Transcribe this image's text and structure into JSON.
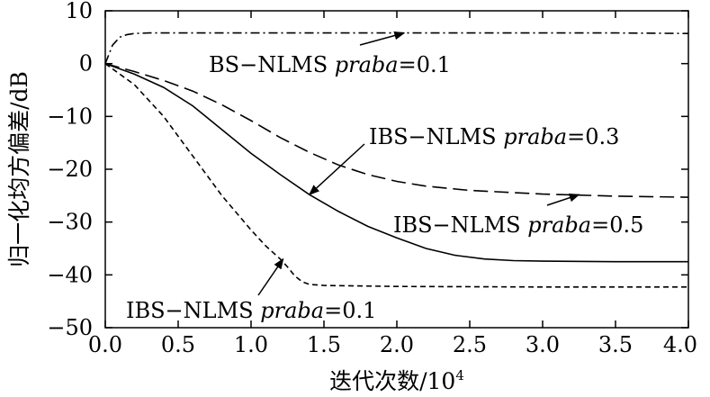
{
  "chart_data": {
    "type": "line",
    "xlabel": "迭代次数/10",
    "xlabel_sup": "4",
    "ylabel": "归一化均方偏差/dB",
    "xlim": [
      0,
      4.0
    ],
    "ylim": [
      -50,
      10
    ],
    "xticks": [
      "0.0",
      "0.5",
      "1.0",
      "1.5",
      "2.0",
      "2.5",
      "3.0",
      "3.5",
      "4.0"
    ],
    "yticks": [
      "10",
      "0",
      "−10",
      "−20",
      "−30",
      "−40",
      "−50"
    ],
    "grid": false,
    "legend": "none",
    "series": [
      {
        "id": "bs01",
        "style": "dash-dot",
        "x": [
          0,
          0.05,
          0.1,
          0.15,
          0.2,
          0.3,
          0.5,
          1.0,
          1.5,
          2.0,
          2.5,
          3.0,
          3.5,
          4.0
        ],
        "y": [
          0,
          3.5,
          5.0,
          5.5,
          5.7,
          5.8,
          5.8,
          5.8,
          5.8,
          5.8,
          5.8,
          5.8,
          5.8,
          5.7
        ]
      },
      {
        "id": "ibs03",
        "style": "solid",
        "x": [
          0,
          0.2,
          0.4,
          0.6,
          0.8,
          1.0,
          1.2,
          1.4,
          1.6,
          1.8,
          2.0,
          2.2,
          2.4,
          2.6,
          2.8,
          3.0,
          3.5,
          4.0
        ],
        "y": [
          0,
          -2.0,
          -4.5,
          -8.0,
          -12.5,
          -17.0,
          -21.0,
          -24.8,
          -28.0,
          -30.8,
          -33.0,
          -35.0,
          -36.3,
          -37.0,
          -37.3,
          -37.4,
          -37.5,
          -37.5
        ]
      },
      {
        "id": "ibs05",
        "style": "long-dash",
        "x": [
          0,
          0.2,
          0.4,
          0.6,
          0.8,
          1.0,
          1.2,
          1.4,
          1.6,
          1.8,
          2.0,
          2.2,
          2.5,
          3.0,
          3.5,
          4.0
        ],
        "y": [
          0,
          -1.5,
          -3.2,
          -5.2,
          -7.8,
          -10.8,
          -14.0,
          -16.8,
          -19.2,
          -21.0,
          -22.3,
          -23.2,
          -24.0,
          -24.7,
          -25.1,
          -25.3
        ]
      },
      {
        "id": "ibs01",
        "style": "short-dash",
        "x": [
          0,
          0.2,
          0.4,
          0.6,
          0.8,
          1.0,
          1.1,
          1.2,
          1.25,
          1.3,
          1.35,
          1.4,
          1.5,
          2.0,
          3.0,
          4.0
        ],
        "y": [
          0,
          -4.0,
          -10.0,
          -17.5,
          -25.0,
          -31.5,
          -34.5,
          -37.0,
          -38.5,
          -40.2,
          -41.3,
          -41.8,
          -42.0,
          -42.2,
          -42.3,
          -42.3
        ]
      }
    ],
    "annotations": [
      {
        "id": "bs01",
        "text": "BS−NLMS ",
        "italic": "praba",
        "rest": "=0.1",
        "point": [
          2.05,
          5.8
        ]
      },
      {
        "id": "ibs03",
        "text": "IBS−NLMS ",
        "italic": "praba",
        "rest": "=0.3",
        "point": [
          1.4,
          -24.8
        ]
      },
      {
        "id": "ibs05",
        "text": "IBS−NLMS ",
        "italic": "praba",
        "rest": "=0.5",
        "point": [
          3.25,
          -24.8
        ]
      },
      {
        "id": "ibs01",
        "text": "IBS−NLMS ",
        "italic": "praba",
        "rest": "=0.1",
        "point": [
          1.22,
          -37.0
        ]
      }
    ]
  }
}
